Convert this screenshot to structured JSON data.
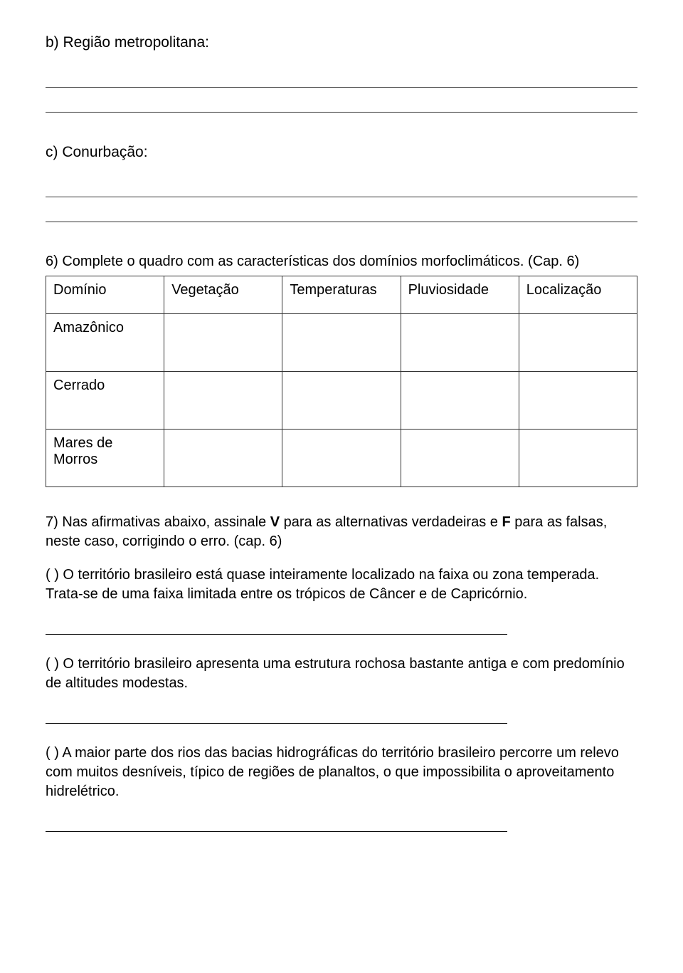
{
  "section_b": {
    "label": "b) Região metropolitana:"
  },
  "section_c": {
    "label": "c) Conurbação:"
  },
  "q6": {
    "instruction": "6) Complete o quadro com as características dos domínios morfoclimáticos. (Cap. 6)",
    "headers": [
      "Domínio",
      "Vegetação",
      "Temperaturas",
      "Pluviosidade",
      "Localização"
    ],
    "rows": [
      "Amazônico",
      "Cerrado",
      "Mares de Morros"
    ]
  },
  "q7": {
    "intro_pre": "7) Nas afirmativas abaixo, assinale ",
    "bold_v": "V",
    "intro_mid": " para as alternativas verdadeiras e ",
    "bold_f": "F",
    "intro_post": " para as falsas, neste caso, corrigindo o erro. (cap. 6)",
    "stmt1": "(     ) O território brasileiro está quase inteiramente localizado na faixa ou zona temperada. Trata-se de uma faixa limitada entre os trópicos de Câncer e de Capricórnio.",
    "stmt2": "(     ) O território brasileiro apresenta uma estrutura rochosa bastante antiga e com predomínio de altitudes modestas.",
    "stmt3": "(     ) A maior parte dos rios das bacias hidrográficas do território brasileiro percorre um relevo com muitos desníveis, típico de regiões de planaltos, o que impossibilita o aproveitamento hidrelétrico."
  }
}
